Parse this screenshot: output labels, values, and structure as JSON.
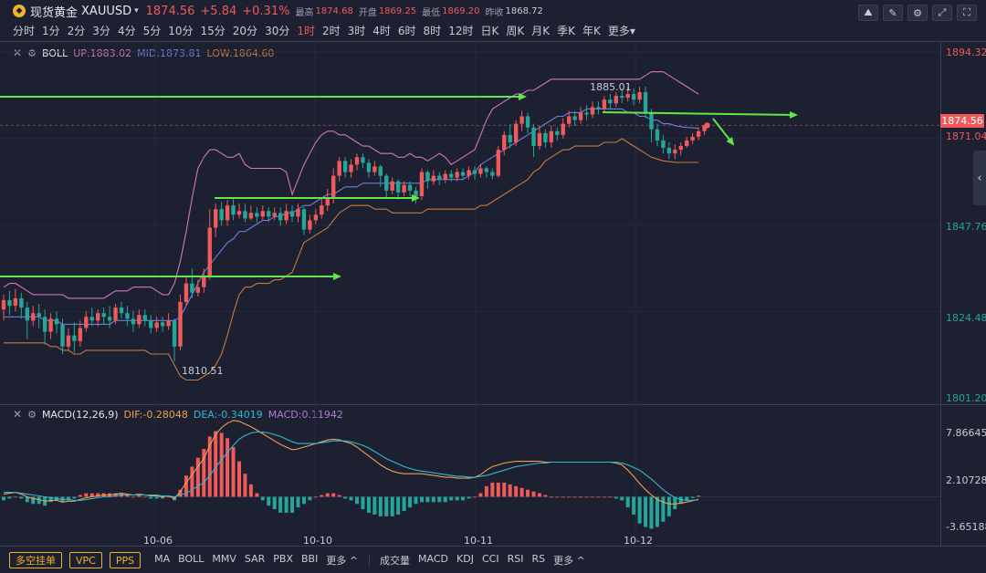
{
  "header": {
    "symbol_name": "现货黄金",
    "symbol_code": "XAUUSD",
    "caret": "▾",
    "price": "1874.56",
    "change": "+5.84",
    "change_pct": "+0.31%",
    "high_label": "最高",
    "high": "1874.68",
    "open_label": "开盘",
    "open": "1869.25",
    "low_label": "最低",
    "low": "1869.20",
    "prev_label": "昨收",
    "prev": "1868.72"
  },
  "periods": [
    "分时",
    "1分",
    "2分",
    "3分",
    "4分",
    "5分",
    "10分",
    "15分",
    "20分",
    "30分",
    "1时",
    "2时",
    "3时",
    "4时",
    "6时",
    "8时",
    "12时",
    "日K",
    "周K",
    "月K",
    "季K",
    "年K",
    "更多▾"
  ],
  "active_period": "1时",
  "main_panel": {
    "indicator": "BOLL",
    "up_label": "UP:1883.02",
    "mid_label": "MID:1873.81",
    "low_label": "LOW:1864.60",
    "y_labels": [
      {
        "text": "1894.32",
        "color": "red"
      },
      {
        "text": "1871.04",
        "color": "red"
      },
      {
        "text": "1847.76",
        "color": "green"
      },
      {
        "text": "1824.48",
        "color": "green"
      },
      {
        "text": "1801.20",
        "color": "green"
      }
    ],
    "current_price_tag": "1874.56",
    "annotations": {
      "high_label": "1885.01",
      "low_label": "1810.51"
    }
  },
  "macd_panel": {
    "indicator": "MACD(12,26,9)",
    "dif_label": "DIF:-0.28048",
    "dea_label": "DEA:-0.34019",
    "macd_label": "MACD:0.11942",
    "y_labels": [
      "7.86645",
      "2.10728",
      "-3.65188"
    ]
  },
  "x_labels": [
    "10-06",
    "10-10",
    "10-11",
    "10-12"
  ],
  "colors": {
    "up": "#ef5a5a",
    "down": "#26a69a",
    "upper_band": "#d474c4",
    "mid_band": "#6f7fd8",
    "lower_band": "#c47a44",
    "arrow": "#5ee84a",
    "dif": "#f0a050",
    "dea": "#36b7d6"
  },
  "bottom_bar": {
    "order_buttons": [
      "多空挂单",
      "VPC",
      "PPS"
    ],
    "main_indicators": [
      "MA",
      "BOLL",
      "MMV",
      "SAR",
      "PBX",
      "BBI",
      "更多 ^"
    ],
    "sub_indicators": [
      "成交量",
      "MACD",
      "KDJ",
      "CCI",
      "RSI",
      "RS",
      "更多 ^"
    ]
  },
  "chart_data": {
    "type": "candlestick",
    "x_tick_labels": [
      "10-06",
      "10-10",
      "10-11",
      "10-12"
    ],
    "ylim": [
      1801.2,
      1894.32
    ],
    "candles": [
      [
        1825.0,
        1827.5,
        1822.0,
        1829.0
      ],
      [
        1827.5,
        1826.0,
        1823.5,
        1830.0
      ],
      [
        1826.0,
        1828.0,
        1824.5,
        1830.5
      ],
      [
        1828.0,
        1825.5,
        1822.5,
        1829.5
      ],
      [
        1825.5,
        1822.0,
        1817.0,
        1827.0
      ],
      [
        1822.0,
        1824.0,
        1820.5,
        1826.0
      ],
      [
        1824.0,
        1823.0,
        1820.0,
        1826.5
      ],
      [
        1823.0,
        1819.0,
        1815.5,
        1825.0
      ],
      [
        1819.0,
        1822.5,
        1817.0,
        1824.0
      ],
      [
        1822.5,
        1821.0,
        1818.5,
        1824.5
      ],
      [
        1821.0,
        1815.0,
        1813.0,
        1822.5
      ],
      [
        1815.0,
        1818.0,
        1814.0,
        1820.0
      ],
      [
        1818.0,
        1816.5,
        1813.5,
        1821.5
      ],
      [
        1816.5,
        1820.0,
        1815.0,
        1822.0
      ],
      [
        1820.0,
        1823.0,
        1819.0,
        1824.5
      ],
      [
        1823.0,
        1822.0,
        1820.5,
        1825.5
      ],
      [
        1822.0,
        1824.0,
        1820.5,
        1825.0
      ],
      [
        1824.0,
        1823.0,
        1821.0,
        1825.5
      ],
      [
        1823.0,
        1822.0,
        1820.0,
        1826.0
      ],
      [
        1822.0,
        1825.5,
        1821.0,
        1826.5
      ],
      [
        1825.5,
        1824.0,
        1822.5,
        1827.0
      ],
      [
        1824.0,
        1822.5,
        1820.5,
        1826.0
      ],
      [
        1822.5,
        1821.0,
        1819.0,
        1824.5
      ],
      [
        1821.0,
        1823.5,
        1820.0,
        1825.0
      ],
      [
        1823.5,
        1822.0,
        1820.5,
        1825.0
      ],
      [
        1822.0,
        1820.0,
        1818.5,
        1823.5
      ],
      [
        1820.0,
        1821.5,
        1819.0,
        1823.0
      ],
      [
        1821.5,
        1820.5,
        1819.0,
        1823.0
      ],
      [
        1820.5,
        1822.0,
        1819.5,
        1824.0
      ],
      [
        1822.0,
        1815.0,
        1811.0,
        1822.5
      ],
      [
        1815.0,
        1827.0,
        1814.0,
        1829.0
      ],
      [
        1827.0,
        1832.0,
        1826.0,
        1834.0
      ],
      [
        1832.0,
        1829.5,
        1828.0,
        1836.0
      ],
      [
        1829.5,
        1831.0,
        1828.5,
        1833.0
      ],
      [
        1831.0,
        1834.0,
        1829.5,
        1836.0
      ],
      [
        1834.0,
        1847.0,
        1833.0,
        1852.0
      ],
      [
        1847.0,
        1852.0,
        1844.5,
        1853.5
      ],
      [
        1852.0,
        1849.0,
        1847.5,
        1854.0
      ],
      [
        1849.0,
        1853.0,
        1847.5,
        1854.5
      ],
      [
        1853.0,
        1850.5,
        1849.0,
        1855.0
      ],
      [
        1850.5,
        1851.5,
        1849.5,
        1853.5
      ],
      [
        1851.5,
        1849.5,
        1848.5,
        1853.5
      ],
      [
        1849.5,
        1851.0,
        1849.0,
        1853.0
      ],
      [
        1851.0,
        1850.0,
        1848.5,
        1852.5
      ],
      [
        1850.0,
        1851.5,
        1849.0,
        1853.0
      ],
      [
        1851.5,
        1850.0,
        1848.5,
        1852.5
      ],
      [
        1850.0,
        1851.0,
        1849.0,
        1852.5
      ],
      [
        1851.0,
        1849.0,
        1847.5,
        1852.5
      ],
      [
        1849.0,
        1851.5,
        1848.0,
        1853.5
      ],
      [
        1851.5,
        1850.0,
        1848.5,
        1853.0
      ],
      [
        1850.0,
        1852.0,
        1848.5,
        1853.5
      ],
      [
        1852.0,
        1846.5,
        1845.0,
        1852.5
      ],
      [
        1846.5,
        1849.0,
        1845.5,
        1850.5
      ],
      [
        1849.0,
        1850.5,
        1848.0,
        1852.0
      ],
      [
        1850.5,
        1853.0,
        1849.5,
        1855.0
      ],
      [
        1853.0,
        1855.0,
        1851.5,
        1857.5
      ],
      [
        1855.0,
        1861.0,
        1853.5,
        1863.0
      ],
      [
        1861.0,
        1865.0,
        1859.5,
        1866.0
      ],
      [
        1865.0,
        1862.0,
        1860.5,
        1866.0
      ],
      [
        1862.0,
        1864.0,
        1860.5,
        1865.5
      ],
      [
        1864.0,
        1866.0,
        1862.5,
        1867.0
      ],
      [
        1866.0,
        1864.5,
        1863.0,
        1867.0
      ],
      [
        1864.5,
        1862.0,
        1860.5,
        1865.5
      ],
      [
        1862.0,
        1863.5,
        1861.0,
        1865.0
      ],
      [
        1863.5,
        1861.0,
        1858.0,
        1864.0
      ],
      [
        1861.0,
        1857.0,
        1855.0,
        1861.5
      ],
      [
        1857.0,
        1859.5,
        1856.0,
        1860.5
      ],
      [
        1859.5,
        1856.5,
        1854.5,
        1860.0
      ],
      [
        1856.5,
        1858.5,
        1855.5,
        1859.5
      ],
      [
        1858.5,
        1857.0,
        1855.5,
        1859.5
      ],
      [
        1857.0,
        1855.5,
        1853.5,
        1858.0
      ],
      [
        1855.5,
        1862.0,
        1854.5,
        1863.0
      ],
      [
        1862.0,
        1859.5,
        1857.5,
        1862.5
      ],
      [
        1859.5,
        1861.0,
        1858.5,
        1862.5
      ],
      [
        1861.0,
        1860.0,
        1858.5,
        1862.0
      ],
      [
        1860.0,
        1861.5,
        1859.0,
        1862.5
      ],
      [
        1861.5,
        1860.5,
        1859.5,
        1862.5
      ],
      [
        1860.5,
        1862.0,
        1859.5,
        1863.0
      ],
      [
        1862.0,
        1861.0,
        1860.0,
        1863.0
      ],
      [
        1861.0,
        1862.5,
        1860.0,
        1863.5
      ],
      [
        1862.5,
        1861.5,
        1860.0,
        1863.5
      ],
      [
        1861.5,
        1863.0,
        1860.5,
        1864.0
      ],
      [
        1863.0,
        1862.0,
        1860.5,
        1863.5
      ],
      [
        1862.0,
        1861.0,
        1860.0,
        1863.0
      ],
      [
        1861.0,
        1868.0,
        1860.5,
        1869.0
      ],
      [
        1868.0,
        1872.0,
        1866.5,
        1873.0
      ],
      [
        1872.0,
        1870.0,
        1868.5,
        1875.0
      ],
      [
        1870.0,
        1875.0,
        1869.0,
        1876.0
      ],
      [
        1875.0,
        1877.0,
        1873.0,
        1878.5
      ],
      [
        1877.0,
        1874.0,
        1872.5,
        1878.0
      ],
      [
        1874.0,
        1869.0,
        1866.0,
        1875.0
      ],
      [
        1869.0,
        1872.5,
        1868.0,
        1874.5
      ],
      [
        1872.5,
        1870.0,
        1868.5,
        1873.5
      ],
      [
        1870.0,
        1873.0,
        1868.5,
        1874.5
      ],
      [
        1873.0,
        1872.0,
        1870.5,
        1874.0
      ],
      [
        1872.0,
        1875.0,
        1871.0,
        1876.5
      ],
      [
        1875.0,
        1877.0,
        1874.0,
        1878.5
      ],
      [
        1877.0,
        1876.0,
        1874.5,
        1878.5
      ],
      [
        1876.0,
        1878.0,
        1875.0,
        1879.5
      ],
      [
        1878.0,
        1877.5,
        1876.0,
        1880.0
      ],
      [
        1877.5,
        1879.5,
        1876.5,
        1881.0
      ],
      [
        1879.5,
        1879.0,
        1877.5,
        1881.0
      ],
      [
        1879.0,
        1881.5,
        1878.0,
        1882.5
      ],
      [
        1881.5,
        1880.5,
        1879.0,
        1883.0
      ],
      [
        1880.5,
        1882.5,
        1879.5,
        1883.5
      ],
      [
        1882.5,
        1882.0,
        1880.5,
        1884.5
      ],
      [
        1882.0,
        1883.0,
        1881.0,
        1885.0
      ],
      [
        1883.0,
        1881.5,
        1880.0,
        1884.5
      ],
      [
        1881.5,
        1883.5,
        1880.5,
        1885.0
      ],
      [
        1883.5,
        1878.0,
        1876.5,
        1885.0
      ],
      [
        1878.0,
        1873.5,
        1870.0,
        1879.0
      ],
      [
        1873.5,
        1870.5,
        1869.0,
        1875.0
      ],
      [
        1870.5,
        1868.5,
        1867.0,
        1872.0
      ],
      [
        1868.5,
        1867.0,
        1865.5,
        1870.0
      ],
      [
        1867.0,
        1868.0,
        1865.5,
        1869.5
      ],
      [
        1868.0,
        1869.0,
        1866.5,
        1870.0
      ],
      [
        1869.0,
        1870.5,
        1868.5,
        1871.5
      ],
      [
        1870.5,
        1871.5,
        1869.5,
        1872.5
      ],
      [
        1871.5,
        1873.0,
        1870.5,
        1874.0
      ],
      [
        1873.0,
        1874.56,
        1872.0,
        1874.68
      ]
    ],
    "upper_band": [
      1831,
      1832,
      1832,
      1831,
      1830,
      1829,
      1829,
      1829,
      1829,
      1829,
      1829,
      1828,
      1828,
      1828,
      1828,
      1828,
      1828,
      1828,
      1829,
      1830,
      1830,
      1830,
      1831,
      1831,
      1831,
      1831,
      1830,
      1829,
      1829,
      1832,
      1838,
      1846,
      1855,
      1863,
      1866,
      1868,
      1868,
      1867,
      1866,
      1866,
      1867,
      1864,
      1863,
      1863,
      1863,
      1863,
      1863,
      1863,
      1862,
      1856,
      1860,
      1864,
      1867,
      1870,
      1872,
      1873,
      1873,
      1872,
      1872,
      1871,
      1870,
      1869,
      1869,
      1868,
      1867,
      1867,
      1867,
      1866,
      1866,
      1867,
      1866,
      1866,
      1865,
      1866,
      1867,
      1866,
      1864,
      1865,
      1866,
      1867,
      1868,
      1872,
      1876,
      1879,
      1880,
      1881,
      1882,
      1883,
      1883,
      1884,
      1884,
      1885,
      1886,
      1887,
      1887,
      1887,
      1887,
      1887,
      1887,
      1887,
      1887,
      1887,
      1887,
      1887,
      1887,
      1887,
      1887,
      1887,
      1887,
      1888,
      1889,
      1889,
      1889,
      1888,
      1887,
      1886,
      1885,
      1884,
      1883.0
    ],
    "mid_band": [
      1823,
      1823,
      1823,
      1823,
      1823,
      1823,
      1823,
      1822,
      1822,
      1822,
      1821,
      1821,
      1821,
      1821,
      1821,
      1821,
      1821,
      1821,
      1821,
      1822,
      1822,
      1822,
      1822,
      1822,
      1822,
      1822,
      1822,
      1822,
      1822,
      1822,
      1823,
      1826,
      1829,
      1832,
      1835,
      1837,
      1839,
      1841,
      1843,
      1844,
      1846,
      1846,
      1847,
      1848,
      1849,
      1849,
      1850,
      1850,
      1851,
      1851,
      1852,
      1853,
      1853,
      1854,
      1855,
      1856,
      1856,
      1857,
      1858,
      1858,
      1858,
      1859,
      1859,
      1859,
      1859,
      1859,
      1859,
      1859,
      1859,
      1859,
      1859,
      1859,
      1860,
      1860,
      1860,
      1860,
      1860,
      1860,
      1860,
      1861,
      1862,
      1864,
      1865,
      1866,
      1867,
      1868,
      1869,
      1870,
      1871,
      1872,
      1873,
      1874,
      1875,
      1876,
      1877,
      1877,
      1878,
      1878,
      1878,
      1879,
      1879,
      1879,
      1879,
      1879,
      1879,
      1879,
      1878,
      1878,
      1877,
      1877,
      1876,
      1876,
      1875,
      1875,
      1874.5,
      1874.2,
      1874.0,
      1873.9,
      1873.81
    ],
    "lower_band": [
      1816,
      1816,
      1816,
      1816,
      1816,
      1816,
      1816,
      1816,
      1815,
      1815,
      1814,
      1814,
      1813,
      1813,
      1814,
      1814,
      1814,
      1814,
      1814,
      1814,
      1814,
      1814,
      1814,
      1814,
      1814,
      1813,
      1813,
      1813,
      1813,
      1810,
      1807,
      1806,
      1806,
      1806,
      1807,
      1808,
      1810,
      1813,
      1818,
      1824,
      1829,
      1831,
      1831,
      1832,
      1832,
      1832,
      1833,
      1833,
      1834,
      1835,
      1839,
      1843,
      1844,
      1845,
      1846,
      1847,
      1849,
      1851,
      1852,
      1853,
      1853,
      1853,
      1853,
      1852,
      1852,
      1852,
      1851,
      1851,
      1851,
      1851,
      1851,
      1851,
      1852,
      1852,
      1852,
      1852,
      1852,
      1852,
      1852,
      1852,
      1852,
      1853,
      1853,
      1854,
      1855,
      1856,
      1857,
      1858,
      1859,
      1860,
      1862,
      1863,
      1865,
      1866,
      1867,
      1868,
      1868,
      1869,
      1869,
      1869,
      1869,
      1869,
      1870,
      1870,
      1870,
      1871,
      1870,
      1869,
      1868,
      1867,
      1866,
      1865.5,
      1865,
      1864.8,
      1864.6,
      1864.6,
      1864.6,
      1864.6,
      1864.6
    ],
    "macd_ylim": [
      -3.65188,
      9.2
    ],
    "dif": [
      0.3,
      0.4,
      0.5,
      0.3,
      0.0,
      -0.2,
      -0.3,
      -0.5,
      -0.4,
      -0.4,
      -0.6,
      -0.5,
      -0.5,
      -0.3,
      -0.1,
      0.0,
      0.1,
      0.2,
      0.2,
      0.3,
      0.4,
      0.3,
      0.2,
      0.3,
      0.2,
      0.1,
      0.1,
      0.0,
      0.1,
      -0.2,
      0.6,
      1.6,
      2.5,
      3.4,
      4.3,
      5.8,
      7.0,
      7.8,
      8.3,
      8.6,
      8.5,
      8.2,
      7.9,
      7.5,
      7.1,
      6.7,
      6.3,
      5.9,
      5.6,
      5.3,
      5.4,
      5.6,
      5.8,
      6.0,
      6.2,
      6.4,
      6.5,
      6.4,
      6.2,
      6.0,
      5.6,
      5.1,
      4.6,
      4.1,
      3.6,
      3.2,
      2.9,
      2.7,
      2.6,
      2.6,
      2.6,
      2.6,
      2.5,
      2.4,
      2.3,
      2.2,
      2.2,
      2.1,
      2.1,
      2.1,
      2.2,
      2.5,
      3.0,
      3.4,
      3.6,
      3.8,
      3.9,
      4.0,
      4.0,
      4.0,
      4.0,
      4.0,
      3.9,
      3.9,
      3.9,
      3.9,
      3.9,
      3.9,
      3.9,
      3.9,
      3.9,
      3.9,
      3.9,
      3.9,
      3.8,
      3.6,
      3.0,
      2.3,
      1.5,
      0.8,
      0.2,
      -0.3,
      -0.6,
      -0.8,
      -0.8,
      -0.7,
      -0.6,
      -0.45,
      -0.28048
    ],
    "dea": [
      0.5,
      0.5,
      0.5,
      0.4,
      0.3,
      0.2,
      0.1,
      0.0,
      -0.1,
      -0.2,
      -0.3,
      -0.3,
      -0.4,
      -0.4,
      -0.3,
      -0.2,
      -0.1,
      0.0,
      0.0,
      0.1,
      0.2,
      0.2,
      0.2,
      0.2,
      0.2,
      0.2,
      0.2,
      0.1,
      0.1,
      0.0,
      0.2,
      0.4,
      0.8,
      1.2,
      1.6,
      2.4,
      3.3,
      4.2,
      5.0,
      5.8,
      6.5,
      6.9,
      7.2,
      7.3,
      7.3,
      7.2,
      7.0,
      6.8,
      6.5,
      6.2,
      6.0,
      6.0,
      6.0,
      6.0,
      6.1,
      6.2,
      6.3,
      6.3,
      6.3,
      6.2,
      6.0,
      5.8,
      5.5,
      5.1,
      4.7,
      4.3,
      4.0,
      3.7,
      3.4,
      3.2,
      3.0,
      2.9,
      2.8,
      2.7,
      2.6,
      2.5,
      2.4,
      2.3,
      2.3,
      2.2,
      2.2,
      2.3,
      2.4,
      2.6,
      2.8,
      3.0,
      3.2,
      3.4,
      3.5,
      3.6,
      3.7,
      3.8,
      3.8,
      3.9,
      3.9,
      3.9,
      3.9,
      3.9,
      3.9,
      3.9,
      3.9,
      3.9,
      3.9,
      3.9,
      3.9,
      3.8,
      3.6,
      3.3,
      3.0,
      2.5,
      2.0,
      1.4,
      0.8,
      0.3,
      -0.1,
      -0.3,
      -0.4,
      -0.38,
      -0.34019
    ]
  }
}
